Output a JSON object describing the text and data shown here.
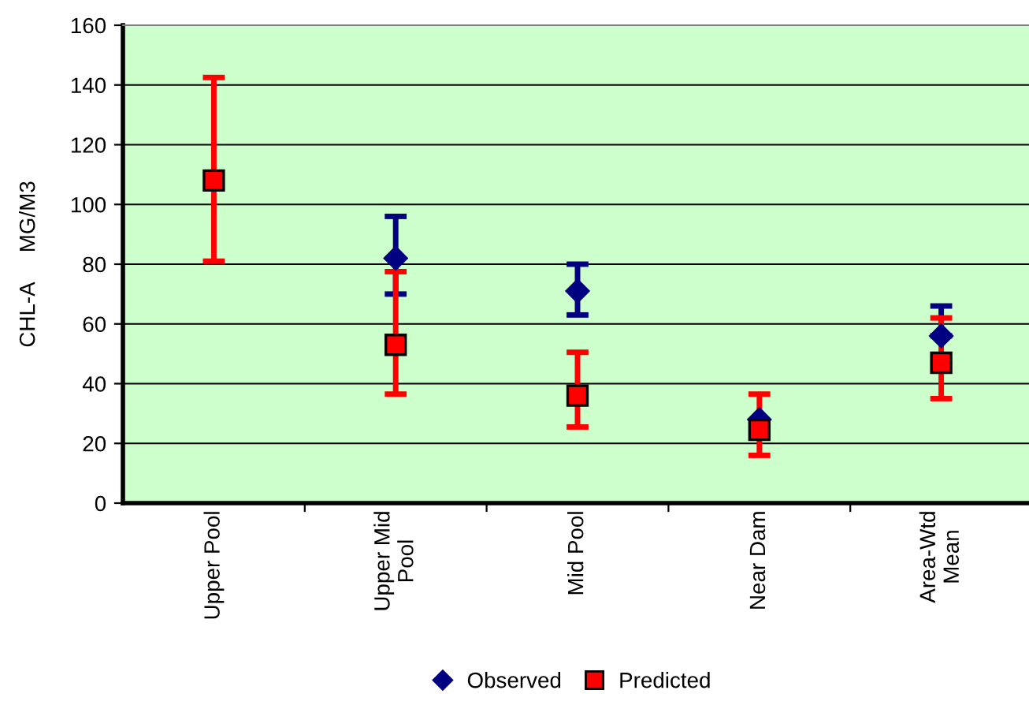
{
  "chart_data": {
    "type": "scatter",
    "ylabel": "CHL-A     MG/M3",
    "categories": [
      "Upper Pool",
      "Upper Mid\nPool",
      "Mid Pool",
      "Near Dam",
      "Area-Wtd\nMean"
    ],
    "series": [
      {
        "name": "Observed",
        "color": "#000080",
        "marker": "diamond",
        "values": [
          null,
          82,
          71,
          28,
          56
        ],
        "errors": [
          null,
          [
            70,
            96
          ],
          [
            63,
            80
          ],
          null,
          [
            56,
            66
          ]
        ]
      },
      {
        "name": "Predicted",
        "color": "#ff0000",
        "marker": "square",
        "values": [
          108,
          53,
          36,
          24.5,
          47
        ],
        "errors": [
          [
            81,
            142.5
          ],
          [
            36.5,
            77.5
          ],
          [
            25.5,
            50.5
          ],
          [
            16,
            36.5
          ],
          [
            35,
            62
          ]
        ]
      }
    ],
    "ylim": [
      0,
      160
    ],
    "yticks": [
      0,
      20,
      40,
      60,
      80,
      100,
      120,
      140,
      160
    ],
    "grid": "y",
    "legend": "bottom"
  }
}
